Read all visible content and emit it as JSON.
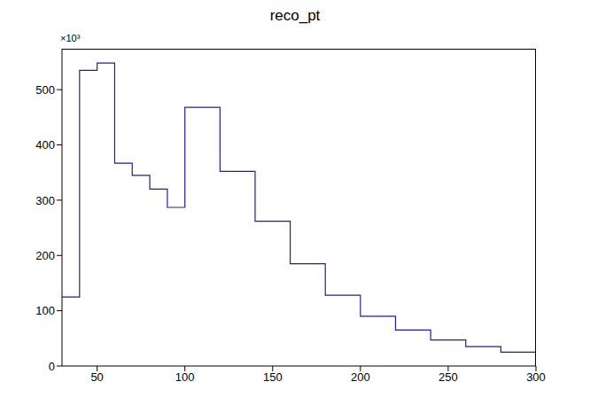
{
  "chart_data": {
    "type": "histogram",
    "title": "reco_pt",
    "annotations": [
      "×10³"
    ],
    "bins": [
      30,
      40,
      50,
      60,
      70,
      80,
      90,
      100,
      120,
      140,
      160,
      180,
      200,
      220,
      240,
      260,
      280,
      300
    ],
    "values": [
      125,
      535,
      548,
      367,
      345,
      320,
      287,
      468,
      352,
      262,
      185,
      128,
      90,
      65,
      47,
      35,
      25
    ],
    "color": "#1f1f99",
    "xlim": [
      30,
      300
    ],
    "xticks": [
      50,
      100,
      150,
      200,
      250,
      300
    ],
    "ylim": [
      0,
      574
    ],
    "yticks": [
      0,
      100,
      200,
      300,
      400,
      500
    ],
    "grid": false
  }
}
